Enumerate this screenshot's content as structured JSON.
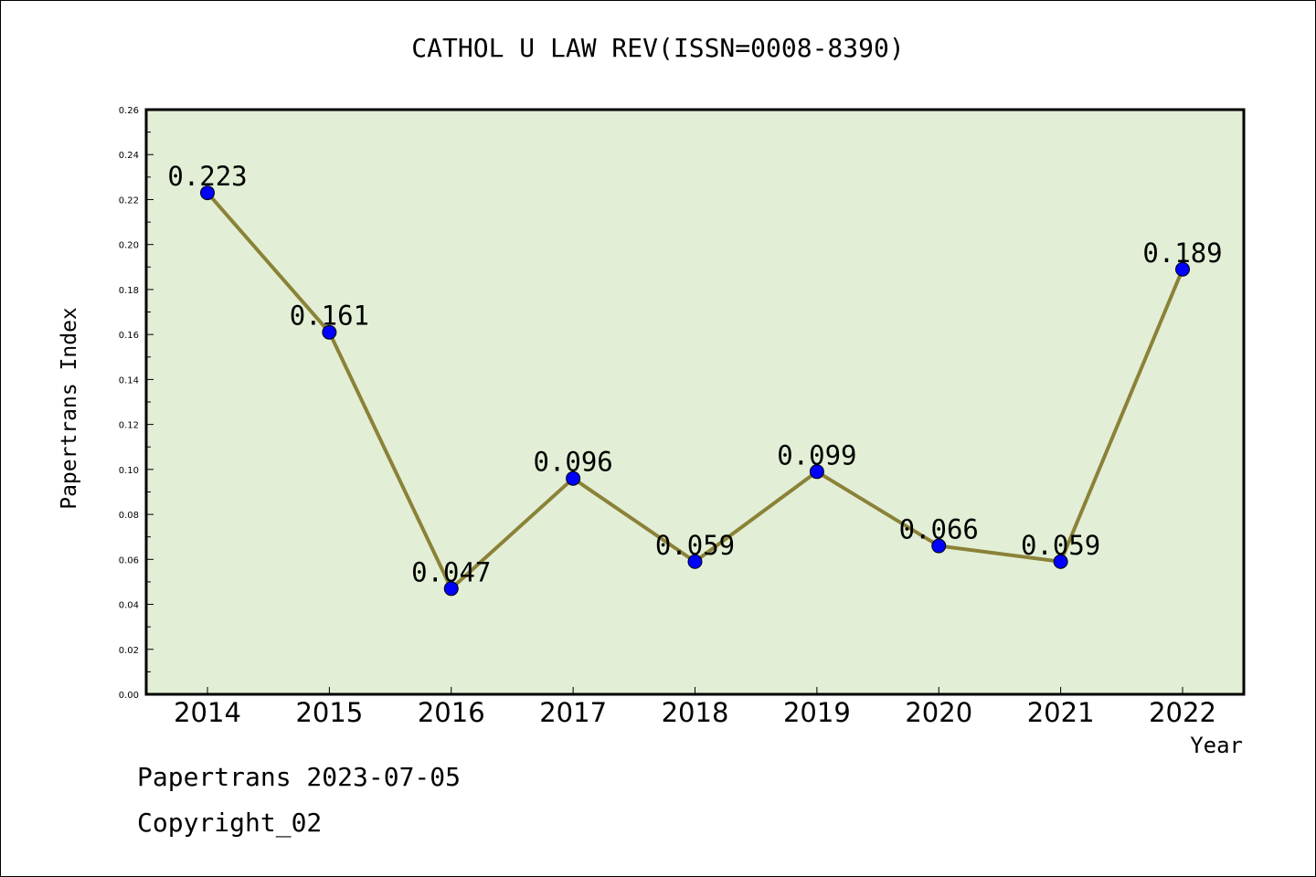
{
  "chart_data": {
    "type": "line",
    "title": "CATHOL U LAW REV(ISSN=0008-8390)",
    "xlabel": "Year",
    "ylabel": "Papertrans Index",
    "categories": [
      "2014",
      "2015",
      "2016",
      "2017",
      "2018",
      "2019",
      "2020",
      "2021",
      "2022"
    ],
    "values": [
      0.223,
      0.161,
      0.047,
      0.096,
      0.059,
      0.099,
      0.066,
      0.059,
      0.189
    ],
    "data_labels": [
      "0.223",
      "0.161",
      "0.047",
      "0.096",
      "0.059",
      "0.099",
      "0.066",
      "0.059",
      "0.189"
    ],
    "ylim": [
      0,
      0.26
    ],
    "yticks": [
      "0.00",
      "0.02",
      "0.04",
      "0.06",
      "0.08",
      "0.10",
      "0.12",
      "0.14",
      "0.16",
      "0.18",
      "0.20",
      "0.22",
      "0.24",
      "0.26"
    ],
    "grid": false,
    "line_color": "#8b8238",
    "marker_color": "#0000ff",
    "plot_background": "#e2efd6"
  },
  "footer": {
    "line1": "Papertrans 2023-07-05",
    "line2": "Copyright_02"
  }
}
